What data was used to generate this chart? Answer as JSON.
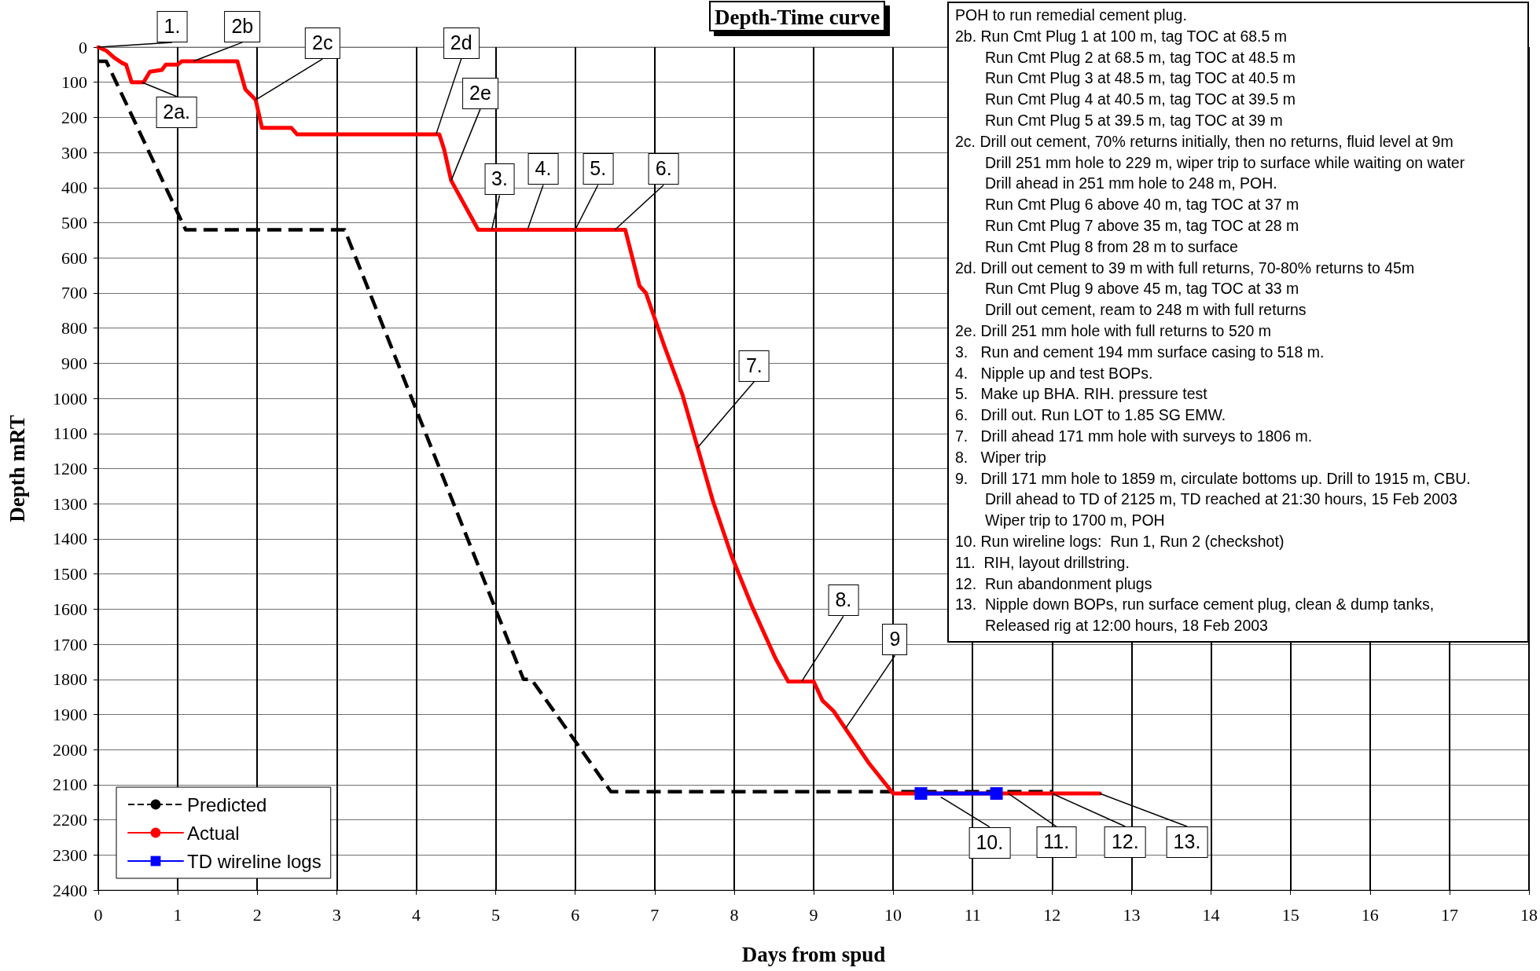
{
  "chart_data": {
    "type": "line",
    "title": "Depth-Time curve",
    "xlabel": "Days from spud",
    "ylabel": "Depth mRT",
    "xlim": [
      0,
      18
    ],
    "xticks": [
      0,
      1,
      2,
      3,
      4,
      5,
      6,
      7,
      8,
      9,
      10,
      11,
      12,
      13,
      14,
      15,
      16,
      17,
      18
    ],
    "ylim": [
      2400,
      0
    ],
    "yticks": [
      0,
      100,
      200,
      300,
      400,
      500,
      600,
      700,
      800,
      900,
      1000,
      1100,
      1200,
      1300,
      1400,
      1500,
      1600,
      1700,
      1800,
      1900,
      2000,
      2100,
      2200,
      2300,
      2400
    ],
    "grid": true,
    "legend": "bottom left",
    "marker": "none",
    "series": [
      {
        "name": "Predicted",
        "color": "#000000",
        "line_style": "dashed",
        "x": [
          0,
          0.1,
          1.1,
          3.1,
          5.35,
          5.45,
          6.45,
          12
        ],
        "values": [
          40,
          40,
          520,
          520,
          1800,
          1800,
          2120,
          2120
        ]
      },
      {
        "name": "Actual",
        "color": "#ff0000",
        "line_style": "solid",
        "x": [
          0,
          0.1,
          0.2,
          0.3,
          0.35,
          0.42,
          0.57,
          0.65,
          0.8,
          0.85,
          1.0,
          1.05,
          1.75,
          1.85,
          1.98,
          2.06,
          2.43,
          2.5,
          4.29,
          4.35,
          4.44,
          4.78,
          6.63,
          6.81,
          6.89,
          7.12,
          7.35,
          7.54,
          7.73,
          7.97,
          8.22,
          8.52,
          8.68,
          9.0,
          9.11,
          9.25,
          9.7,
          10.0,
          12.6
        ],
        "values": [
          0,
          10,
          30,
          45,
          50,
          100,
          100,
          70,
          65,
          50,
          50,
          40,
          40,
          120,
          150,
          230,
          230,
          248,
          248,
          290,
          380,
          520,
          520,
          680,
          700,
          850,
          990,
          1140,
          1290,
          1450,
          1590,
          1740,
          1806,
          1806,
          1860,
          1890,
          2040,
          2125,
          2125
        ]
      },
      {
        "name": "TD wireline logs",
        "color": "#0000ff",
        "line_style": "solid",
        "marker": "square",
        "x": [
          10.35,
          11.3
        ],
        "values": [
          2125,
          2125
        ]
      }
    ],
    "annotations": [
      {
        "text": "1.",
        "x": 0,
        "y": 0
      },
      {
        "text": "2a.",
        "x": 0.55,
        "y": 100
      },
      {
        "text": "2b",
        "x": 1.2,
        "y": 40
      },
      {
        "text": "2c",
        "x": 1.98,
        "y": 150
      },
      {
        "text": "2d",
        "x": 4.25,
        "y": 248
      },
      {
        "text": "2e",
        "x": 4.44,
        "y": 380
      },
      {
        "text": "3.",
        "x": 4.95,
        "y": 520
      },
      {
        "text": "4.",
        "x": 5.4,
        "y": 520
      },
      {
        "text": "5.",
        "x": 6.0,
        "y": 520
      },
      {
        "text": "6.",
        "x": 6.5,
        "y": 520
      },
      {
        "text": "7.",
        "x": 7.54,
        "y": 1140
      },
      {
        "text": "8.",
        "x": 8.85,
        "y": 1806
      },
      {
        "text": "9",
        "x": 9.4,
        "y": 1940
      },
      {
        "text": "10.",
        "x": 10.6,
        "y": 2135
      },
      {
        "text": "11.",
        "x": 11.45,
        "y": 2125
      },
      {
        "text": "12.",
        "x": 12.0,
        "y": 2125
      },
      {
        "text": "13.",
        "x": 12.6,
        "y": 2125
      },
      "POH to run remedial cement plug.",
      "2b. Run Cmt Plug 1 at 100 m, tag TOC at 68.5 m\nRun Cmt Plug 2 at 68.5 m, tag TOC at 48.5 m\nRun Cmt Plug 3 at 48.5 m, tag TOC at 40.5 m\nRun Cmt Plug 4 at 40.5 m, tag TOC at 39.5 m\nRun Cmt Plug 5 at 39.5 m, tag TOC at 39 m",
      "2c. Drill out cement, 70% returns initially, then no returns, fluid level at 9m\nDrill 251 mm hole to 229 m, wiper trip to surface while waiting on water\nDrill ahead in 251 mm hole to 248 m, POH.\nRun Cmt Plug 6 above 40 m, tag TOC at 37 m\nRun Cmt Plug 7 above 35 m, tag TOC at 28 m\nRun Cmt Plug 8 from 28 m to surface",
      "2d. Drill out cement to 39 m with full returns, 70-80% returns to 45m\nRun Cmt Plug 9 above 45 m, tag TOC at 33 m\nDrill out cement, ream to 248 m with full returns",
      "2e. Drill 251 mm hole with full returns to 520 m",
      "3.   Run and cement 194 mm surface casing to 518 m.",
      "4.   Nipple up and test BOPs.",
      "5.   Make up BHA. RIH. pressure test",
      "6.   Drill out. Run LOT to 1.85 SG EMW.",
      "7.   Drill ahead 171 mm hole with surveys to 1806 m.",
      "8.   Wiper trip",
      "9.   Drill 171 mm hole to 1859 m, circulate bottoms up. Drill to 1915 m, CBU.\nDrill ahead to TD of 2125 m, TD reached at 21:30 hours, 15 Feb 2003\nWiper trip to 1700 m, POH",
      "10. Run wireline logs:  Run 1, Run 2 (checkshot)",
      "11.  RIH, layout drillstring.",
      "12.  Run abandonment plugs",
      "13.  Nipple down BOPs, run surface cement plug, clean & dump tanks,\nReleased rig at 12:00 hours, 18 Feb 2003"
    ]
  }
}
